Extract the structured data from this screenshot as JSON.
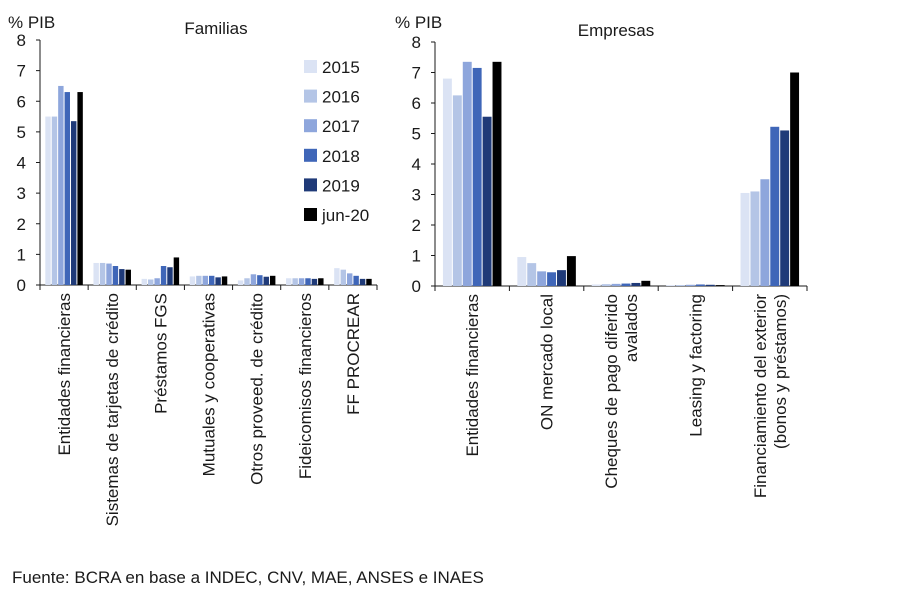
{
  "source": "Fuente: BCRA en base a INDEC, CNV, MAE, ANSES e INAES",
  "legend": [
    {
      "name": "2015",
      "color": "#dbe3f4"
    },
    {
      "name": "2016",
      "color": "#b4c5e6"
    },
    {
      "name": "2017",
      "color": "#8ea6dc"
    },
    {
      "name": "2018",
      "color": "#3f66b8"
    },
    {
      "name": "2019",
      "color": "#1f3a78"
    },
    {
      "name": "jun-20",
      "color": "#000000"
    }
  ],
  "chart_data": [
    {
      "type": "bar",
      "title": "Familias",
      "ylabel": "% PIB",
      "ylim": [
        0,
        8
      ],
      "yticks": [
        "0",
        "1",
        "2",
        "3",
        "4",
        "5",
        "6",
        "7",
        "8"
      ],
      "categories": [
        [
          "Entidades financieras"
        ],
        [
          "Sistemas de tarjetas de crédito"
        ],
        [
          "Préstamos FGS"
        ],
        [
          "Mutuales y cooperativas"
        ],
        [
          "Otros proveed. de crédito"
        ],
        [
          "Fideicomisos financieros"
        ],
        [
          "FF PROCREAR"
        ]
      ],
      "series": [
        {
          "name": "2015",
          "values": [
            5.5,
            0.72,
            0.2,
            0.28,
            0.15,
            0.22,
            0.55
          ]
        },
        {
          "name": "2016",
          "values": [
            5.5,
            0.72,
            0.18,
            0.3,
            0.22,
            0.22,
            0.5
          ]
        },
        {
          "name": "2017",
          "values": [
            6.5,
            0.7,
            0.22,
            0.3,
            0.35,
            0.22,
            0.38
          ]
        },
        {
          "name": "2018",
          "values": [
            6.3,
            0.62,
            0.62,
            0.3,
            0.32,
            0.22,
            0.3
          ]
        },
        {
          "name": "2019",
          "values": [
            5.35,
            0.52,
            0.58,
            0.25,
            0.27,
            0.2,
            0.2
          ]
        },
        {
          "name": "jun-20",
          "values": [
            6.3,
            0.5,
            0.9,
            0.28,
            0.3,
            0.22,
            0.2
          ]
        }
      ]
    },
    {
      "type": "bar",
      "title": "Empresas",
      "ylabel": "% PIB",
      "ylim": [
        0,
        8
      ],
      "yticks": [
        "0",
        "1",
        "2",
        "3",
        "4",
        "5",
        "6",
        "7",
        "8"
      ],
      "categories": [
        [
          "Entidades financieras"
        ],
        [
          "ON mercado local"
        ],
        [
          "Cheques de pago diferido",
          "avalados"
        ],
        [
          "Leasing y factoring"
        ],
        [
          "Financiamiento del exterior",
          "(bonos y préstamos)"
        ]
      ],
      "series": [
        {
          "name": "2015",
          "values": [
            6.8,
            0.95,
            0.05,
            0.03,
            3.05
          ]
        },
        {
          "name": "2016",
          "values": [
            6.25,
            0.75,
            0.06,
            0.03,
            3.1
          ]
        },
        {
          "name": "2017",
          "values": [
            7.35,
            0.48,
            0.07,
            0.04,
            3.5
          ]
        },
        {
          "name": "2018",
          "values": [
            7.15,
            0.45,
            0.08,
            0.05,
            5.22
          ]
        },
        {
          "name": "2019",
          "values": [
            5.55,
            0.52,
            0.1,
            0.04,
            5.1
          ]
        },
        {
          "name": "jun-20",
          "values": [
            7.35,
            0.98,
            0.17,
            0.03,
            7.0
          ]
        }
      ]
    }
  ]
}
